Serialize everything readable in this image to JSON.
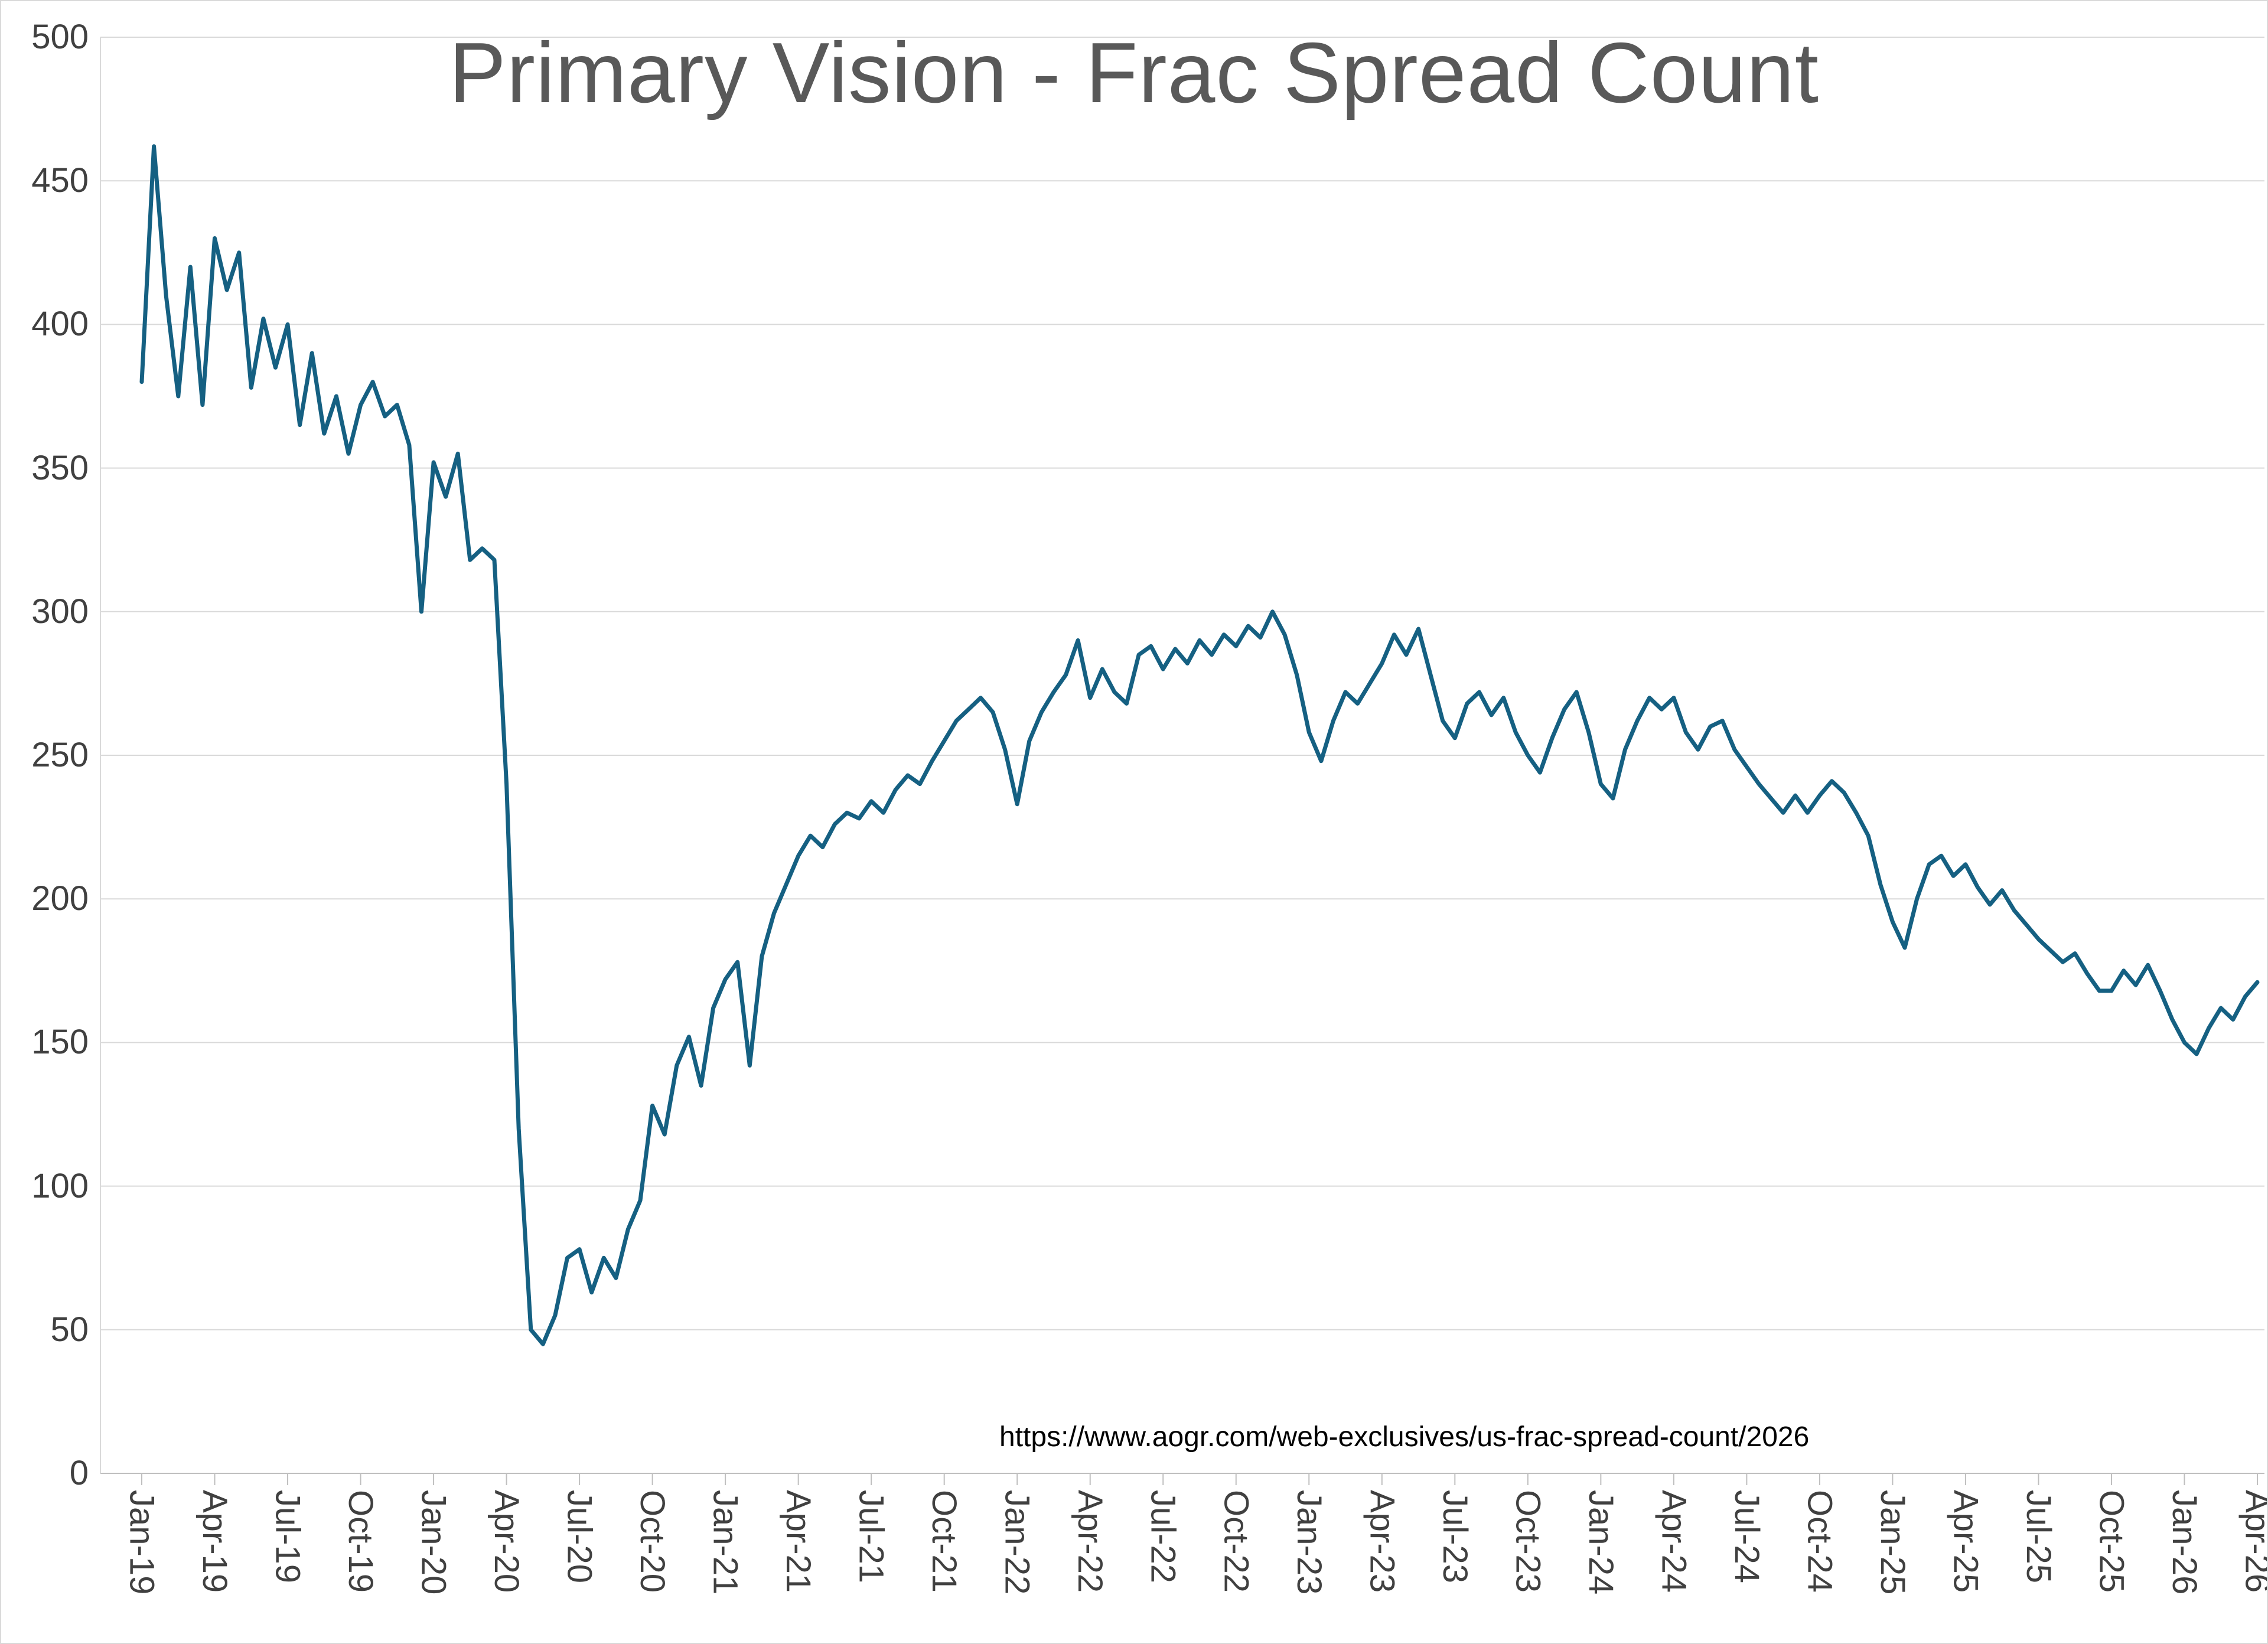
{
  "annotation": "https://www.aogr.com/web-exclusives/us-frac-spread-count/2026",
  "colors": {
    "line": "#156082",
    "title_text": "#595959",
    "axis_text": "#404040",
    "gridline": "#d9d9d9",
    "axis_line": "#bfbfbf",
    "background": "#ffffff"
  },
  "chart_data": {
    "type": "line",
    "title": "Primary Vision - Frac Spread Count",
    "xlabel": "",
    "ylabel": "",
    "legend": "none",
    "grid": "horizontal",
    "ylim": [
      0,
      500
    ],
    "y_tick_step": 50,
    "y_tick_labels": [
      "0",
      "50",
      "100",
      "150",
      "200",
      "250",
      "300",
      "350",
      "400",
      "450",
      "500"
    ],
    "x_tick_labels": [
      "Jan-19",
      "Apr-19",
      "Jul-19",
      "Oct-19",
      "Jan-20",
      "Apr-20",
      "Jul-20",
      "Oct-20",
      "Jan-21",
      "Apr-21",
      "Jul-21",
      "Oct-21",
      "Jan-22",
      "Apr-22",
      "Jul-22",
      "Oct-22",
      "Jan-23",
      "Apr-23",
      "Jul-23",
      "Oct-23",
      "Jan-24",
      "Apr-24",
      "Jul-24",
      "Oct-24",
      "Jan-25",
      "Apr-25",
      "Jul-25",
      "Oct-25",
      "Jan-26",
      "Apr-26"
    ],
    "x_tick_interval_months": 3,
    "series": [
      {
        "name": "Frac Spread Count",
        "sampling": "semi-monthly, uniformly spaced from Jan-19 through Apr-26",
        "start_label": "Jan-19",
        "end_label": "Apr-26",
        "values": [
          380,
          462,
          410,
          375,
          420,
          372,
          430,
          412,
          425,
          378,
          402,
          385,
          400,
          365,
          390,
          362,
          375,
          355,
          372,
          380,
          368,
          372,
          358,
          300,
          352,
          340,
          355,
          318,
          322,
          318,
          240,
          120,
          50,
          45,
          55,
          75,
          78,
          63,
          75,
          68,
          85,
          95,
          128,
          118,
          142,
          152,
          135,
          162,
          172,
          178,
          142,
          180,
          195,
          205,
          215,
          222,
          218,
          226,
          230,
          228,
          234,
          230,
          238,
          243,
          240,
          248,
          255,
          262,
          266,
          270,
          265,
          252,
          233,
          255,
          265,
          272,
          278,
          290,
          270,
          280,
          272,
          268,
          285,
          288,
          280,
          287,
          282,
          290,
          285,
          292,
          288,
          295,
          291,
          300,
          292,
          278,
          258,
          248,
          262,
          272,
          268,
          275,
          282,
          292,
          285,
          294,
          278,
          262,
          256,
          268,
          272,
          264,
          270,
          258,
          250,
          244,
          256,
          266,
          272,
          258,
          240,
          235,
          252,
          262,
          270,
          266,
          270,
          258,
          252,
          260,
          262,
          252,
          246,
          240,
          235,
          230,
          236,
          230,
          236,
          241,
          237,
          230,
          222,
          205,
          192,
          183,
          200,
          212,
          215,
          208,
          212,
          204,
          198,
          203,
          196,
          191,
          186,
          182,
          178,
          181,
          174,
          168,
          168,
          175,
          170,
          177,
          168,
          158,
          150,
          146,
          155,
          162,
          158,
          166,
          171
        ]
      }
    ]
  }
}
